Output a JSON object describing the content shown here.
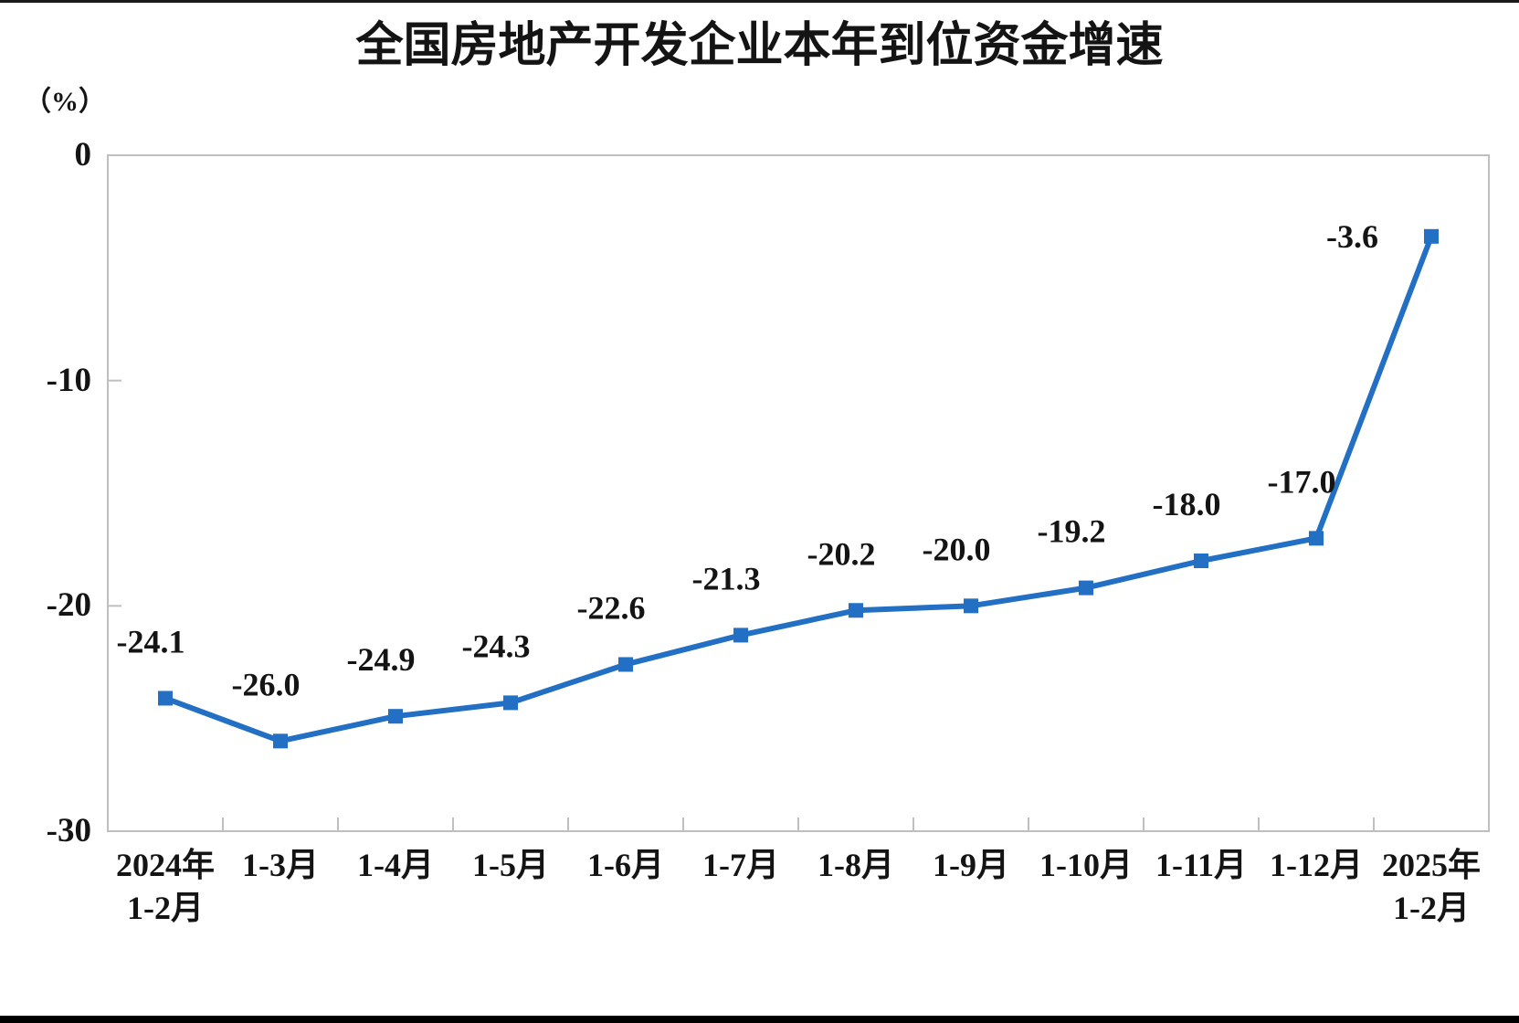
{
  "page": {
    "background": "#ffffff",
    "top_bar_color": "#1a1a1a",
    "bottom_bar_color": "#000000"
  },
  "chart_data": {
    "type": "line",
    "title": "全国房地产开发企业本年到位资金增速",
    "unit_label": "（%）",
    "categories": [
      {
        "line1": "2024年",
        "line2": "1-2月"
      },
      {
        "line1": "1-3月",
        "line2": ""
      },
      {
        "line1": "1-4月",
        "line2": ""
      },
      {
        "line1": "1-5月",
        "line2": ""
      },
      {
        "line1": "1-6月",
        "line2": ""
      },
      {
        "line1": "1-7月",
        "line2": ""
      },
      {
        "line1": "1-8月",
        "line2": ""
      },
      {
        "line1": "1-9月",
        "line2": ""
      },
      {
        "line1": "1-10月",
        "line2": ""
      },
      {
        "line1": "1-11月",
        "line2": ""
      },
      {
        "line1": "1-12月",
        "line2": ""
      },
      {
        "line1": "2025年",
        "line2": "1-2月"
      }
    ],
    "values": [
      -24.1,
      -26.0,
      -24.9,
      -24.3,
      -22.6,
      -21.3,
      -20.2,
      -20.0,
      -19.2,
      -18.0,
      -17.0,
      -3.6
    ],
    "data_labels": [
      "-24.1",
      "-26.0",
      "-24.9",
      "-24.3",
      "-22.6",
      "-21.3",
      "-20.2",
      "-20.0",
      "-19.2",
      "-18.0",
      "-17.0",
      "-3.6"
    ],
    "y_ticks": [
      {
        "label": "0",
        "value": 0
      },
      {
        "label": "-10",
        "value": -10
      },
      {
        "label": "-20",
        "value": -20
      },
      {
        "label": "-30",
        "value": -30
      }
    ],
    "ylim": [
      -30,
      0
    ],
    "xlabel": "",
    "ylabel": "",
    "grid": false,
    "legend": "none",
    "line_color": "#226fc4",
    "marker": "square",
    "marker_color": "#226fc4",
    "label_color": "#141414",
    "axis_color": "#bfbfbf"
  }
}
